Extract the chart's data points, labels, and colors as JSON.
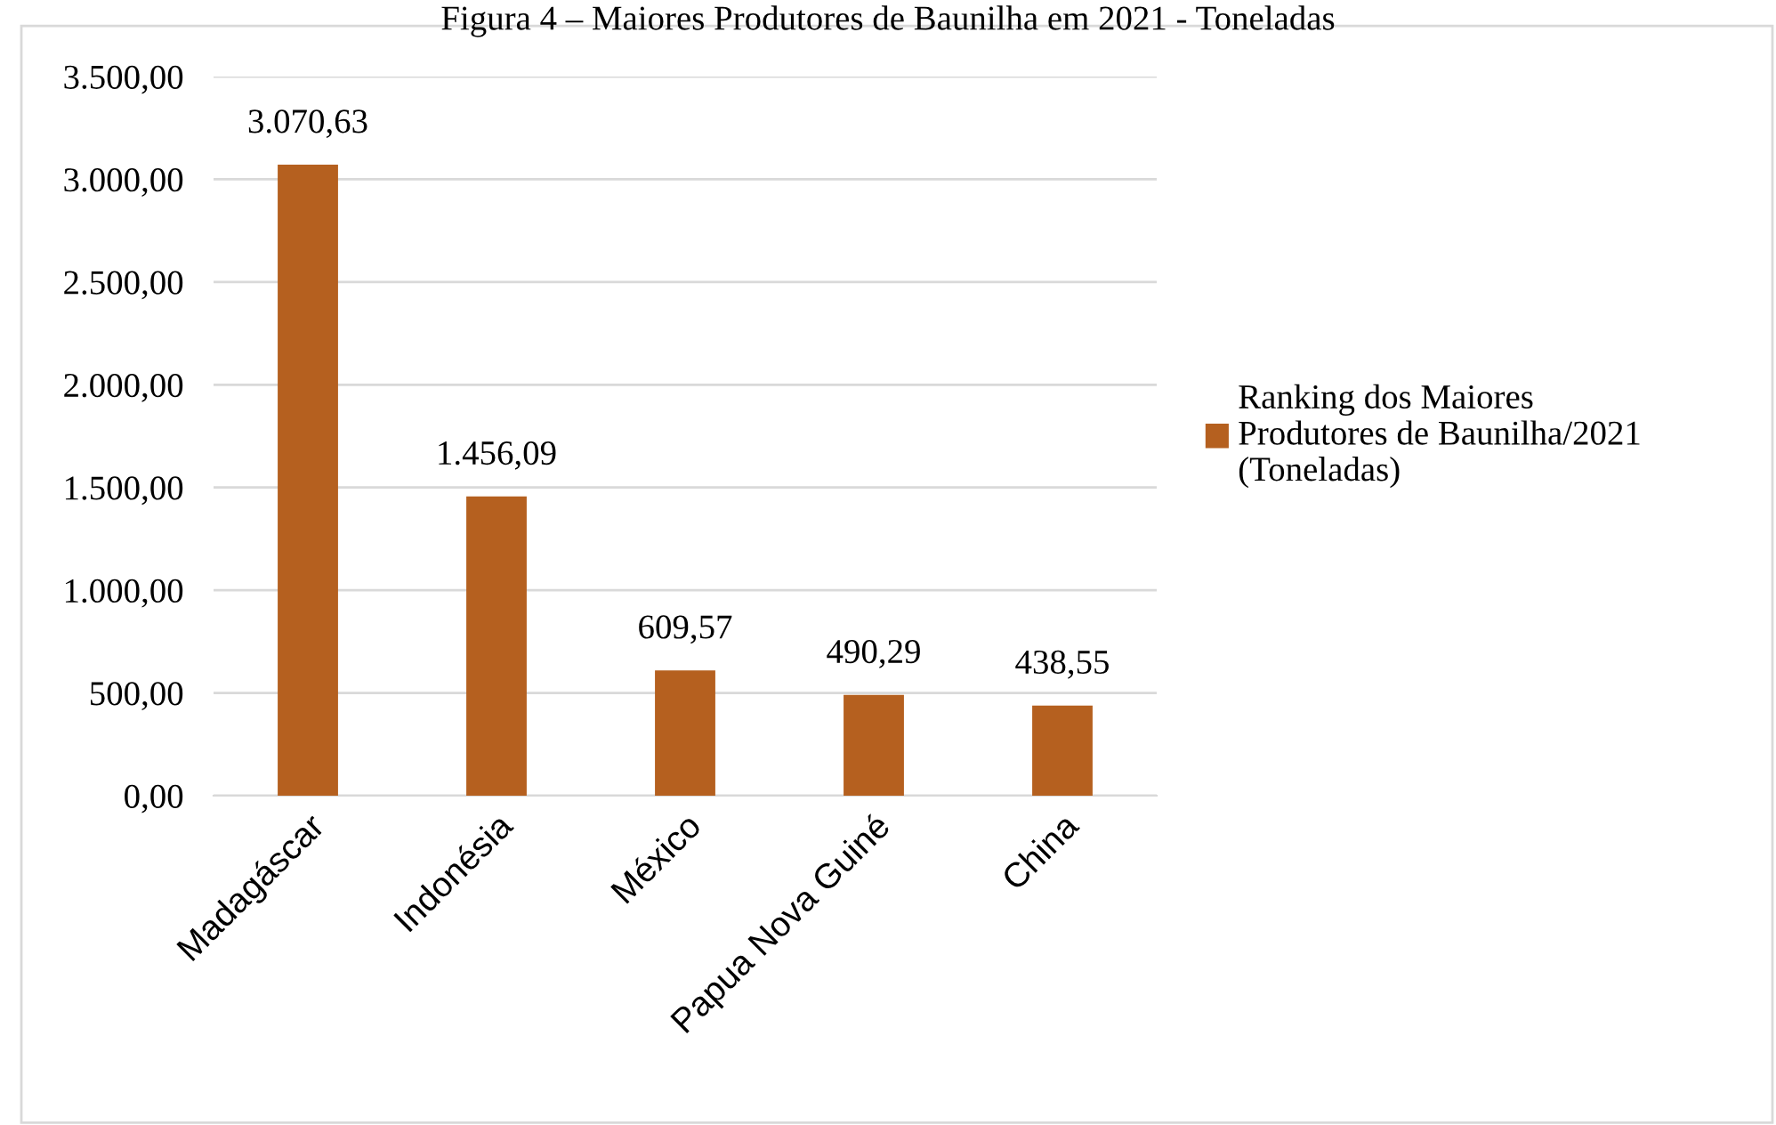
{
  "chart_data": {
    "type": "bar",
    "title": "Figura 4 – Maiores Produtores de Baunilha em 2021 - Toneladas",
    "categories": [
      "Madagáscar",
      "Indonésia",
      "México",
      "Papua Nova Guiné",
      "China"
    ],
    "series": [
      {
        "name": "Ranking dos Maiores Produtores de Baunilha/2021 (Toneladas)",
        "color": "#b5601f",
        "values": [
          3070.63,
          1456.09,
          609.57,
          490.29,
          438.55
        ],
        "value_labels": [
          "3.070,63",
          "1.456,09",
          "609,57",
          "490,29",
          "438,55"
        ]
      }
    ],
    "ylim": [
      0,
      3500
    ],
    "yticks": [
      {
        "value": 0,
        "label": "0,00"
      },
      {
        "value": 500,
        "label": "500,00"
      },
      {
        "value": 1000,
        "label": "1.000,00"
      },
      {
        "value": 1500,
        "label": "1.500,00"
      },
      {
        "value": 2000,
        "label": "2.000,00"
      },
      {
        "value": 2500,
        "label": "2.500,00"
      },
      {
        "value": 3000,
        "label": "3.000,00"
      },
      {
        "value": 3500,
        "label": "3.500,00"
      }
    ],
    "grid": "y",
    "legend": "right"
  }
}
